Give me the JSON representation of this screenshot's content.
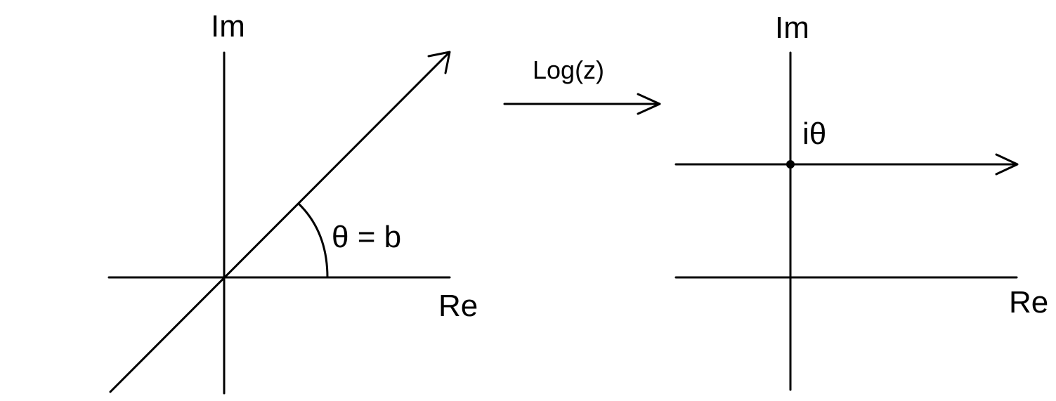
{
  "left_plane": {
    "im_label": "Im",
    "re_label": "Re",
    "angle_label": "θ = b"
  },
  "mapping": {
    "label": "Log(z)"
  },
  "right_plane": {
    "im_label": "Im",
    "re_label": "Re",
    "point_label": "iθ"
  },
  "colors": {
    "stroke": "#000000",
    "background": "#ffffff"
  }
}
